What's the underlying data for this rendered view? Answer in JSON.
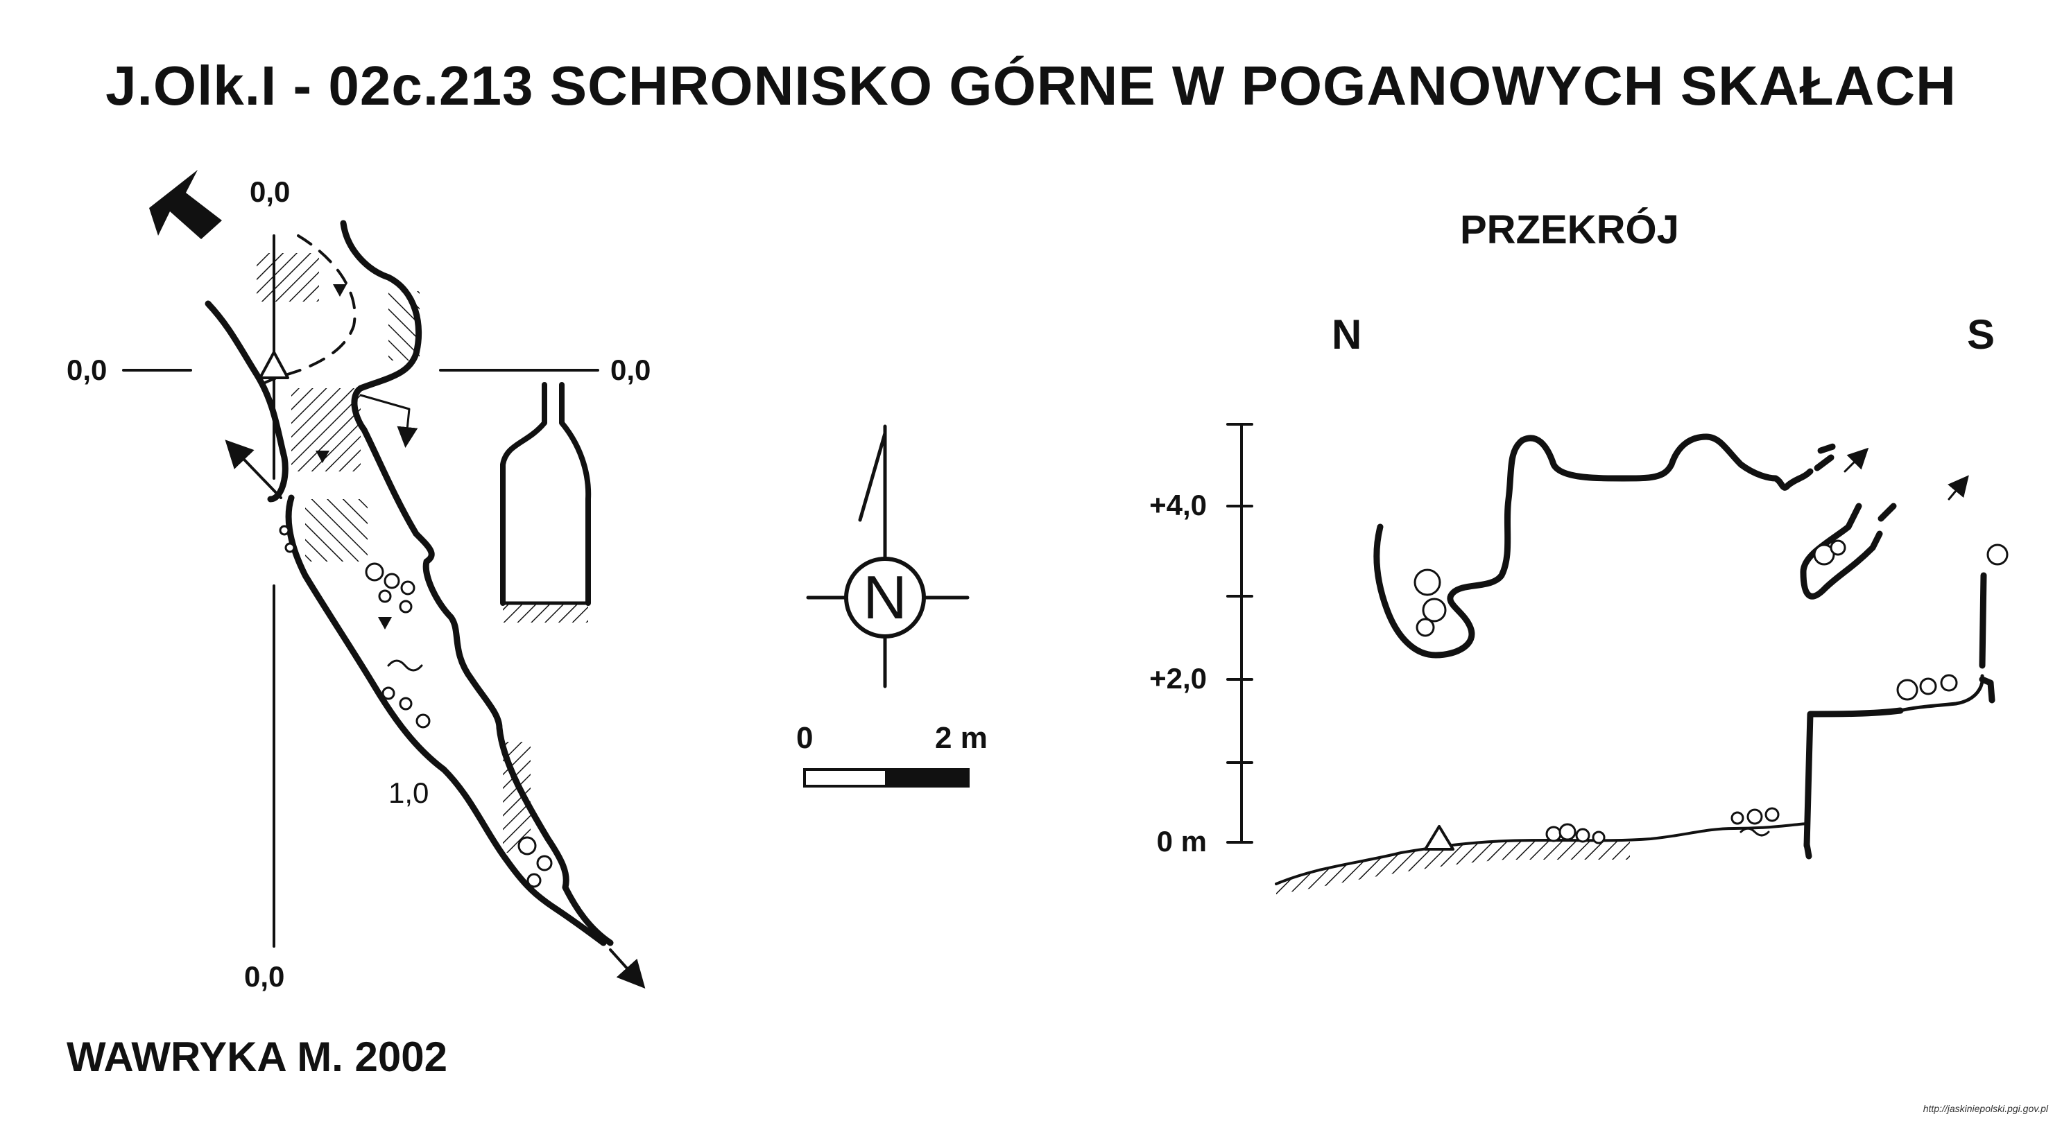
{
  "title": "J.Olk.I - 02c.213  SCHRONISKO GÓRNE W POGANOWYCH SKAŁACH",
  "author": "WAWRYKA M. 2002",
  "plan": {
    "coords": {
      "top": "0,0",
      "left": "0,0",
      "right": "0,0",
      "bottom": "0,0"
    },
    "depth_label": "1,0"
  },
  "compass": {
    "north_letter": "N"
  },
  "scale_bar": {
    "start_label": "0",
    "end_label": "2 m"
  },
  "section": {
    "title": "PRZEKRÓJ",
    "left_dir": "N",
    "right_dir": "S",
    "elevations": [
      "+4,0",
      "+2,0",
      "0 m"
    ]
  },
  "credit": "http://jaskiniepolski.pgi.gov.pl"
}
